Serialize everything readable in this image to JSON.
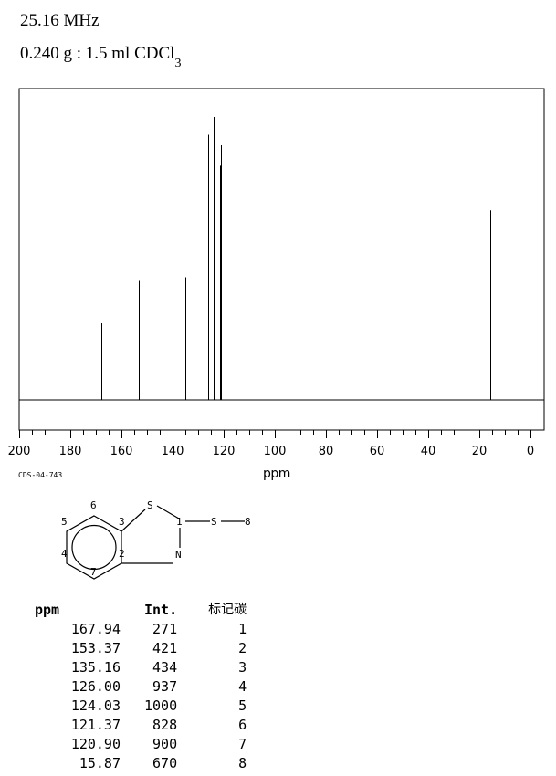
{
  "header": {
    "frequency": "25.16 MHz",
    "sample_prefix": "0.240 g : 1.5 ml CDCl",
    "sample_sub": "3"
  },
  "spectrum_code": "CDS-04-743",
  "structure_labels": {
    "atom_S_ring": "S",
    "atom_N": "N",
    "atom_S_sub": "S",
    "n1": "1",
    "n2": "2",
    "n3": "3",
    "n4": "4",
    "n5": "5",
    "n6": "6",
    "n7": "7",
    "n8": "8"
  },
  "chart_data": {
    "type": "line",
    "xlabel": "ppm",
    "xlim": [
      200,
      0
    ],
    "xticks": [
      200,
      180,
      160,
      140,
      120,
      100,
      80,
      60,
      40,
      20,
      0
    ],
    "peaks": [
      {
        "ppm": 167.94,
        "intensity": 271,
        "label": "1"
      },
      {
        "ppm": 153.37,
        "intensity": 421,
        "label": "2"
      },
      {
        "ppm": 135.16,
        "intensity": 434,
        "label": "3"
      },
      {
        "ppm": 126.0,
        "intensity": 937,
        "label": "4"
      },
      {
        "ppm": 124.03,
        "intensity": 1000,
        "label": "5"
      },
      {
        "ppm": 121.37,
        "intensity": 828,
        "label": "6"
      },
      {
        "ppm": 120.9,
        "intensity": 900,
        "label": "7"
      },
      {
        "ppm": 15.87,
        "intensity": 670,
        "label": "8"
      }
    ]
  },
  "table": {
    "headers": [
      "ppm",
      "Int.",
      "标记碳"
    ],
    "rows": [
      [
        "167.94",
        "271",
        "1"
      ],
      [
        "153.37",
        "421",
        "2"
      ],
      [
        "135.16",
        "434",
        "3"
      ],
      [
        "126.00",
        "937",
        "4"
      ],
      [
        "124.03",
        "1000",
        "5"
      ],
      [
        "121.37",
        "828",
        "6"
      ],
      [
        "120.90",
        "900",
        "7"
      ],
      [
        "15.87",
        "670",
        "8"
      ]
    ]
  }
}
